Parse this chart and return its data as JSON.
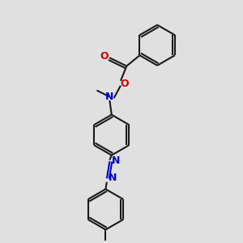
{
  "bg_color": "#e0e0e0",
  "bond_color": "#1a1a1a",
  "N_color": "#0000cc",
  "O_color": "#cc0000",
  "lw": 1.5,
  "fig_w": 3.0,
  "fig_h": 3.0,
  "dpi": 100,
  "xlim": [
    0,
    10
  ],
  "ylim": [
    0,
    10
  ]
}
